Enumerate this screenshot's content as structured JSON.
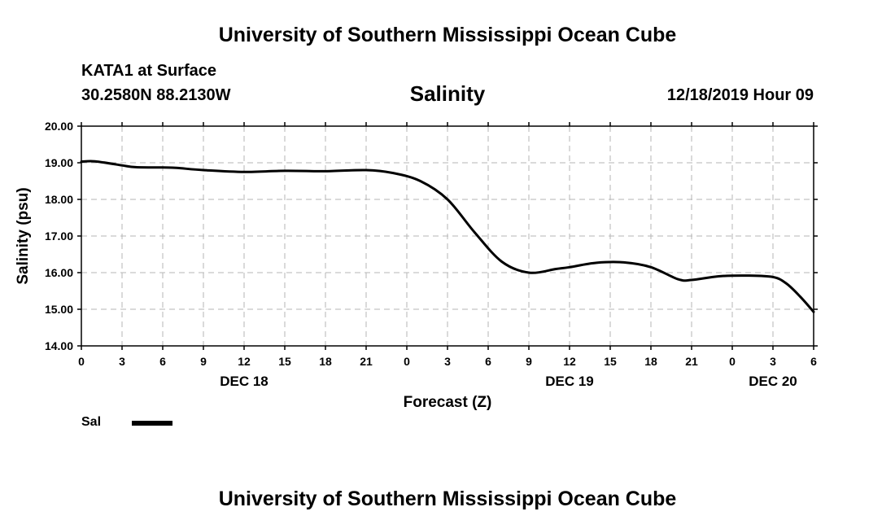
{
  "header": {
    "top_title": "University of Southern Mississippi Ocean Cube",
    "station": "KATA1 at Surface",
    "coordinates": "30.2580N 88.2130W",
    "chart_title": "Salinity",
    "datetime": "12/18/2019 Hour 09"
  },
  "footer": {
    "bottom_title": "University of Southern Mississippi Ocean Cube"
  },
  "legend": {
    "label": "Sal",
    "color": "#000000"
  },
  "chart_data": {
    "type": "line",
    "title": "Salinity",
    "xlabel": "Forecast (Z)",
    "ylabel": "Salinity (psu)",
    "ylim": [
      14.0,
      20.0
    ],
    "xlim": [
      0,
      54
    ],
    "grid": true,
    "y_ticks": [
      "14.00",
      "15.00",
      "16.00",
      "17.00",
      "18.00",
      "19.00",
      "20.00"
    ],
    "x_ticks": [
      "0",
      "3",
      "6",
      "9",
      "12",
      "15",
      "18",
      "21",
      "0",
      "3",
      "6",
      "9",
      "12",
      "15",
      "18",
      "21",
      "0",
      "3",
      "6"
    ],
    "date_labels": [
      {
        "hour": 12,
        "label": "DEC 18"
      },
      {
        "hour": 36,
        "label": "DEC 19"
      },
      {
        "hour": 51,
        "label": "DEC 20"
      }
    ],
    "series": [
      {
        "name": "Sal",
        "x": [
          0,
          1,
          3,
          4,
          6,
          7,
          9,
          12,
          15,
          18,
          21,
          23,
          25,
          27,
          29,
          31,
          33,
          35,
          36,
          38,
          40,
          42,
          44,
          45,
          47,
          49,
          51,
          52,
          53,
          54
        ],
        "values": [
          19.03,
          19.04,
          18.93,
          18.88,
          18.87,
          18.86,
          18.8,
          18.75,
          18.78,
          18.77,
          18.8,
          18.72,
          18.5,
          18.0,
          17.1,
          16.3,
          16.0,
          16.1,
          16.15,
          16.27,
          16.28,
          16.15,
          15.82,
          15.8,
          15.9,
          15.92,
          15.88,
          15.7,
          15.35,
          14.93
        ]
      }
    ]
  }
}
